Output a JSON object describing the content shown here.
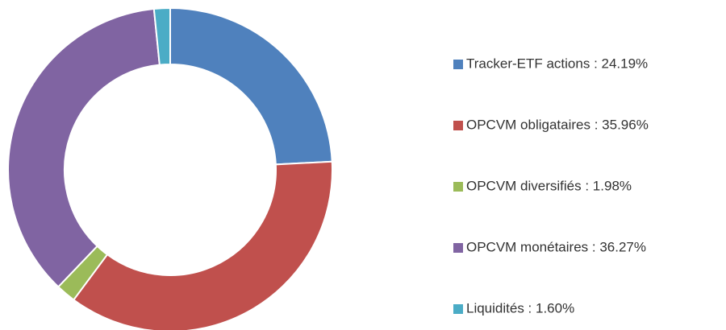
{
  "chart_data": {
    "type": "donut",
    "categories": [
      "Tracker-ETF actions : 24.19%",
      "OPCVM obligataires : 35.96%",
      "OPCVM diversifiés : 1.98%",
      "OPCVM monétaires : 36.27%",
      "Liquidités : 1.60%"
    ],
    "values": [
      24.19,
      35.96,
      1.98,
      36.27,
      1.6
    ],
    "colors": [
      "#4f81bd",
      "#c0504d",
      "#9bbb59",
      "#8064a2",
      "#4bacc6"
    ],
    "legend": "right"
  }
}
